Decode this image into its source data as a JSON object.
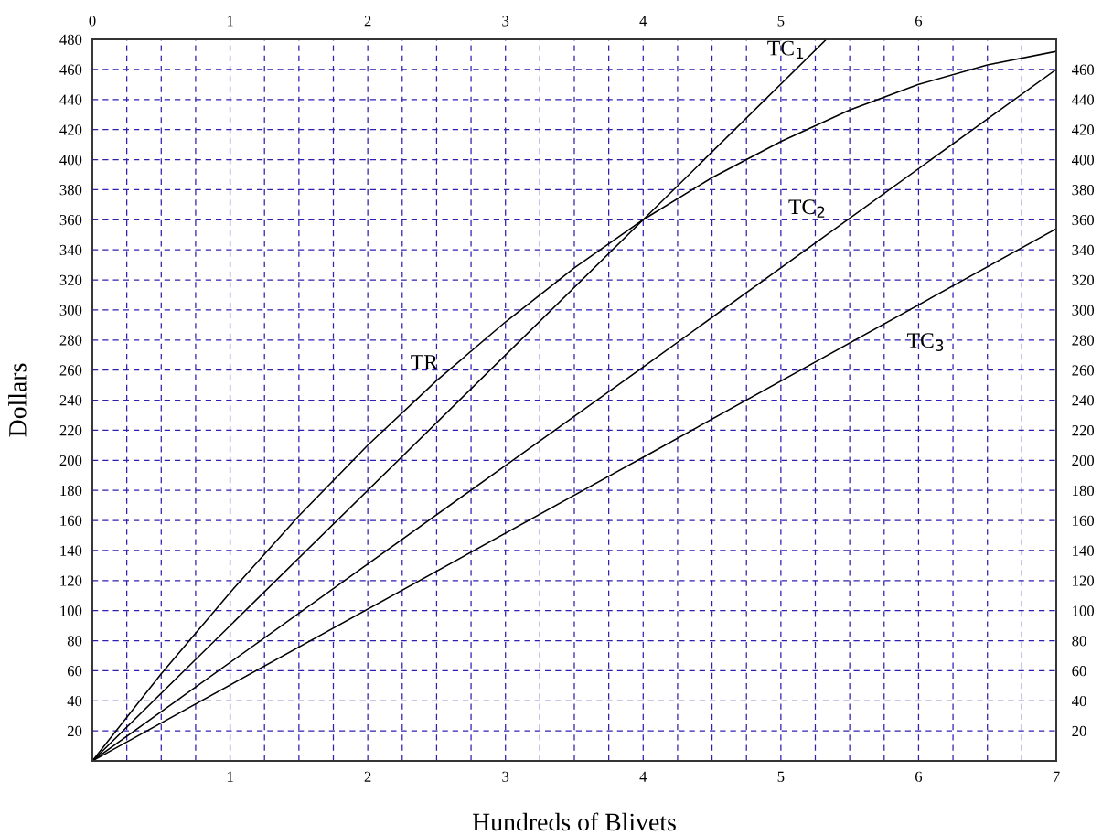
{
  "chart_data": {
    "type": "line",
    "xlabel": "Hundreds of Blivets",
    "ylabel": "Dollars",
    "series": [
      {
        "name": "TR",
        "color": "#000000",
        "x": [
          0,
          0.5,
          1,
          1.5,
          2,
          2.5,
          3,
          3.5,
          4,
          4.5,
          5,
          5.5,
          6,
          6.5,
          7
        ],
        "values": [
          0,
          58,
          112,
          163,
          210,
          253,
          292,
          328,
          360,
          388,
          412,
          433,
          450,
          463,
          472
        ]
      },
      {
        "name": "TC$_{1}$",
        "color": "#000000",
        "x": [
          0,
          4,
          5.33
        ],
        "values": [
          0,
          360,
          480
        ]
      },
      {
        "name": "TC$_{2}$",
        "color": "#000000",
        "x": [
          0,
          4,
          7
        ],
        "values": [
          0,
          262,
          460
        ]
      },
      {
        "name": "TC$_{3}$",
        "color": "#000000",
        "x": [
          0,
          4,
          7
        ],
        "values": [
          0,
          202,
          354
        ]
      }
    ],
    "xlim": [
      0,
      7
    ],
    "ylim": [
      0,
      480
    ],
    "xticks": [
      {
        "value": 0.25,
        "label": null
      },
      {
        "value": 0.5,
        "label": null
      },
      {
        "value": 0.75,
        "label": null
      },
      1,
      {
        "value": 1.25,
        "label": null
      },
      {
        "value": 1.5,
        "label": null
      },
      {
        "value": 1.75,
        "label": null
      },
      2,
      {
        "value": 2.25,
        "label": null
      },
      {
        "value": 2.5,
        "label": null
      },
      {
        "value": 2.75,
        "label": null
      },
      3,
      {
        "value": 3.25,
        "label": null
      },
      {
        "value": 3.5,
        "label": null
      },
      {
        "value": 3.75,
        "label": null
      },
      4,
      {
        "value": 4.25,
        "label": null
      },
      {
        "value": 4.5,
        "label": null
      },
      {
        "value": 4.75,
        "label": null
      },
      5,
      {
        "value": 5.25,
        "label": null
      },
      {
        "value": 5.5,
        "label": null
      },
      {
        "value": 5.75,
        "label": null
      },
      6,
      {
        "value": 6.25,
        "label": null
      },
      {
        "value": 6.5,
        "label": null
      },
      {
        "value": 6.75,
        "label": null
      },
      7
    ],
    "x2lim": [
      0,
      7
    ],
    "x2ticks": [
      0,
      1,
      2,
      3,
      4,
      5,
      6
    ],
    "yticks": [
      20,
      40,
      60,
      80,
      100,
      120,
      140,
      160,
      180,
      200,
      220,
      240,
      260,
      280,
      300,
      320,
      340,
      360,
      380,
      400,
      420,
      440,
      460,
      480
    ],
    "y2lim": [
      0,
      480
    ],
    "y2ticks": [
      20,
      40,
      60,
      80,
      100,
      120,
      140,
      160,
      180,
      200,
      220,
      240,
      260,
      280,
      300,
      320,
      340,
      360,
      380,
      400,
      420,
      440,
      460
    ],
    "grid": true,
    "line_style": "solid",
    "marker": "none",
    "legend": false
  }
}
